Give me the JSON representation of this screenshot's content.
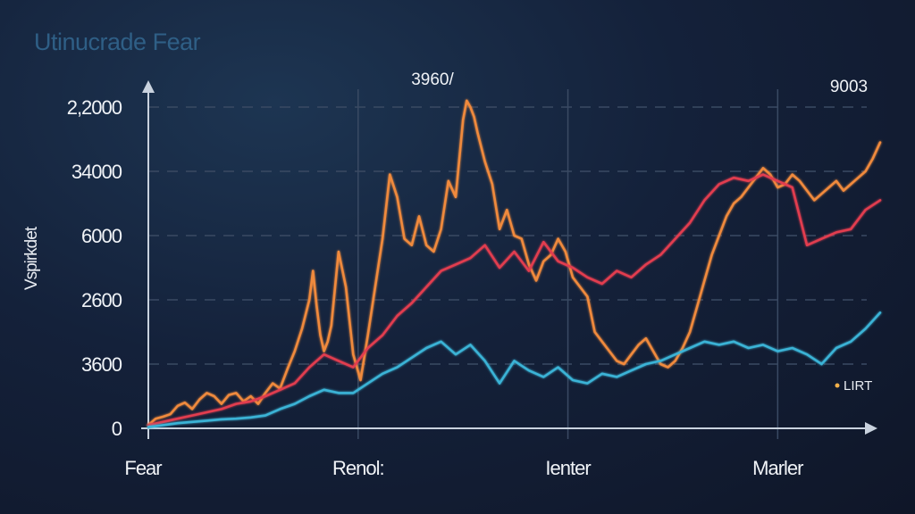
{
  "chart_data": {
    "type": "line",
    "title": "Utinucrade Fear",
    "ylabel": "Vspirkdet",
    "xlabel": "",
    "yticks": [
      "0",
      "3600",
      "2600",
      "6000",
      "34000",
      "2,2000"
    ],
    "xticks": [
      "Fear",
      "Renol:",
      "Ienter",
      "Marler"
    ],
    "ylim": [
      0,
      5
    ],
    "xlim": [
      0,
      100
    ],
    "grid": true,
    "legend": {
      "position": "bottom-right",
      "entries": [
        "LIRT"
      ]
    },
    "annotations": [
      "3960/",
      "9003"
    ],
    "series": [
      {
        "color": "#f08a3c",
        "x": [
          0,
          1,
          2,
          3,
          4,
          5,
          6,
          7,
          8,
          9,
          10,
          11,
          12,
          13,
          14,
          15,
          16,
          17,
          18,
          19,
          20,
          21,
          22,
          22.5,
          23,
          23.5,
          24,
          24.5,
          25,
          26,
          27,
          28,
          29,
          30,
          31,
          32,
          33,
          34,
          35,
          36,
          37,
          38,
          39,
          40,
          41,
          42,
          42.5,
          43,
          43.5,
          44,
          44.5,
          45,
          46,
          47,
          48,
          49,
          50,
          51,
          52,
          53,
          54,
          55,
          56,
          57,
          58,
          59,
          60,
          61,
          62,
          63,
          64,
          65,
          66,
          67,
          68,
          69,
          70,
          71,
          72,
          73,
          74,
          75,
          76,
          77,
          78,
          79,
          80,
          81,
          82,
          83,
          84,
          85,
          86,
          87,
          88,
          89,
          90,
          91,
          92,
          93,
          94,
          95,
          96,
          97,
          98,
          99,
          100
        ],
        "y": [
          0.05,
          0.15,
          0.18,
          0.22,
          0.35,
          0.4,
          0.3,
          0.45,
          0.55,
          0.5,
          0.38,
          0.52,
          0.55,
          0.42,
          0.5,
          0.38,
          0.55,
          0.7,
          0.62,
          0.92,
          1.2,
          1.55,
          2.0,
          2.45,
          1.9,
          1.45,
          1.2,
          1.35,
          1.6,
          2.75,
          2.2,
          1.15,
          0.75,
          1.45,
          2.2,
          2.95,
          3.95,
          3.6,
          2.95,
          2.85,
          3.3,
          2.85,
          2.75,
          3.1,
          3.85,
          3.6,
          4.2,
          4.8,
          5.1,
          5.0,
          4.85,
          4.6,
          4.15,
          3.8,
          3.1,
          3.4,
          3.0,
          2.95,
          2.55,
          2.3,
          2.6,
          2.7,
          2.95,
          2.75,
          2.35,
          2.2,
          2.05,
          1.5,
          1.35,
          1.2,
          1.05,
          1.0,
          1.15,
          1.3,
          1.4,
          1.2,
          1.0,
          0.95,
          1.05,
          1.25,
          1.5,
          1.9,
          2.3,
          2.7,
          3.0,
          3.3,
          3.5,
          3.6,
          3.75,
          3.9,
          4.05,
          3.95,
          3.75,
          3.8,
          3.95,
          3.85,
          3.7,
          3.55,
          3.65,
          3.75,
          3.85,
          3.7,
          3.8,
          3.9,
          4.0,
          4.2,
          4.45
        ]
      },
      {
        "color": "#e23d4f",
        "x": [
          0,
          2,
          4,
          6,
          8,
          10,
          12,
          14,
          16,
          18,
          20,
          22,
          24,
          26,
          28,
          30,
          32,
          34,
          36,
          38,
          40,
          42,
          44,
          46,
          48,
          50,
          52,
          54,
          56,
          58,
          60,
          62,
          64,
          66,
          68,
          70,
          72,
          74,
          76,
          78,
          80,
          82,
          84,
          86,
          88,
          90,
          92,
          94,
          96,
          98,
          100
        ],
        "y": [
          0.05,
          0.1,
          0.15,
          0.2,
          0.25,
          0.3,
          0.38,
          0.42,
          0.5,
          0.6,
          0.7,
          0.95,
          1.15,
          1.05,
          0.95,
          1.25,
          1.45,
          1.75,
          1.95,
          2.2,
          2.45,
          2.55,
          2.65,
          2.85,
          2.5,
          2.75,
          2.45,
          2.9,
          2.6,
          2.5,
          2.35,
          2.25,
          2.45,
          2.35,
          2.55,
          2.7,
          2.95,
          3.2,
          3.55,
          3.8,
          3.9,
          3.85,
          3.95,
          3.85,
          3.75,
          2.85,
          2.95,
          3.05,
          3.1,
          3.4,
          3.55
        ]
      },
      {
        "color": "#3ab3d6",
        "x": [
          0,
          2,
          4,
          6,
          8,
          10,
          12,
          14,
          16,
          18,
          20,
          22,
          24,
          26,
          28,
          30,
          32,
          34,
          36,
          38,
          40,
          42,
          44,
          46,
          48,
          50,
          52,
          54,
          56,
          58,
          60,
          62,
          64,
          66,
          68,
          70,
          72,
          74,
          76,
          78,
          80,
          82,
          84,
          86,
          88,
          90,
          92,
          94,
          96,
          98,
          100
        ],
        "y": [
          0.02,
          0.05,
          0.08,
          0.1,
          0.12,
          0.14,
          0.15,
          0.17,
          0.2,
          0.3,
          0.38,
          0.5,
          0.6,
          0.55,
          0.55,
          0.7,
          0.85,
          0.95,
          1.1,
          1.25,
          1.35,
          1.15,
          1.3,
          1.05,
          0.7,
          1.05,
          0.9,
          0.8,
          0.95,
          0.75,
          0.7,
          0.85,
          0.8,
          0.9,
          1.0,
          1.05,
          1.15,
          1.25,
          1.35,
          1.3,
          1.35,
          1.25,
          1.3,
          1.2,
          1.25,
          1.15,
          1.0,
          1.25,
          1.35,
          1.55,
          1.8
        ]
      }
    ]
  }
}
